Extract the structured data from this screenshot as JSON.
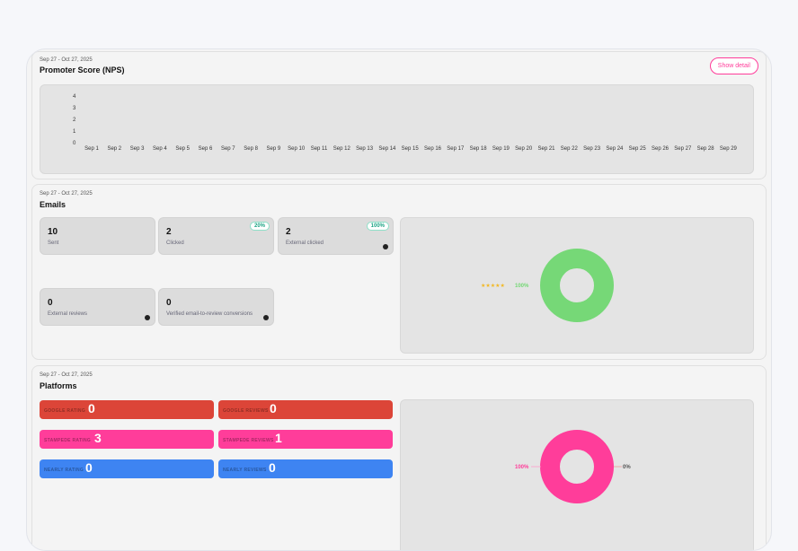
{
  "nps": {
    "date_range": "Sep 27 - Oct 27, 2025",
    "title": "Promoter Score (NPS)",
    "show_detail": "Show detail",
    "chart_data": {
      "type": "line",
      "title": "",
      "xlabel": "",
      "ylabel": "",
      "y_ticks": [
        "4",
        "3",
        "2",
        "1",
        "0"
      ],
      "ylim": [
        0,
        4
      ],
      "categories": [
        "Sep 1",
        "Sep 2",
        "Sep 3",
        "Sep 4",
        "Sep 5",
        "Sep 6",
        "Sep 7",
        "Sep 8",
        "Sep 9",
        "Sep 10",
        "Sep 11",
        "Sep 12",
        "Sep 13",
        "Sep 14",
        "Sep 15",
        "Sep 16",
        "Sep 17",
        "Sep 18",
        "Sep 19",
        "Sep 20",
        "Sep 21",
        "Sep 22",
        "Sep 23",
        "Sep 24",
        "Sep 25",
        "Sep 26",
        "Sep 27",
        "Sep 28",
        "Sep 29"
      ],
      "series": []
    }
  },
  "emails": {
    "date_range": "Sep 27 - Oct 27, 2025",
    "title": "Emails",
    "stats": [
      {
        "value": "10",
        "label": "Sent"
      },
      {
        "value": "2",
        "label": "Clicked",
        "badge": "20%"
      },
      {
        "value": "2",
        "label": "External clicked",
        "badge": "100%"
      },
      {
        "value": "0",
        "label": "External reviews"
      },
      {
        "value": "0",
        "label": "Verified email-to-review conversions"
      }
    ],
    "chart_data": {
      "type": "pie",
      "slices": [
        {
          "label": "★★★★★",
          "value": 100,
          "display": "100%",
          "color": "#76d877"
        }
      ]
    }
  },
  "platforms": {
    "date_range": "Sep 27 - Oct 27, 2025",
    "title": "Platforms",
    "items": [
      {
        "label": "GOOGLE RATING",
        "value": "0",
        "color": "#dc4538"
      },
      {
        "label": "GOOGLE REVIEWS",
        "value": "0",
        "color": "#dc4538"
      },
      {
        "label": "STAMPEDE RATING",
        "value": "3",
        "color": "#ff3d9a"
      },
      {
        "label": "STAMPEDE REVIEWS",
        "value": "1",
        "color": "#ff3d9a"
      },
      {
        "label": "NEARLY RATING",
        "value": "0",
        "color": "#3e84f2"
      },
      {
        "label": "NEARLY REVIEWS",
        "value": "0",
        "color": "#3e84f2"
      }
    ],
    "chart_data": {
      "type": "pie",
      "slices": [
        {
          "display": "100%",
          "value": 100,
          "color": "#ff3d9a"
        },
        {
          "display": "0%",
          "value": 0,
          "color": "#dc4538"
        }
      ]
    }
  }
}
